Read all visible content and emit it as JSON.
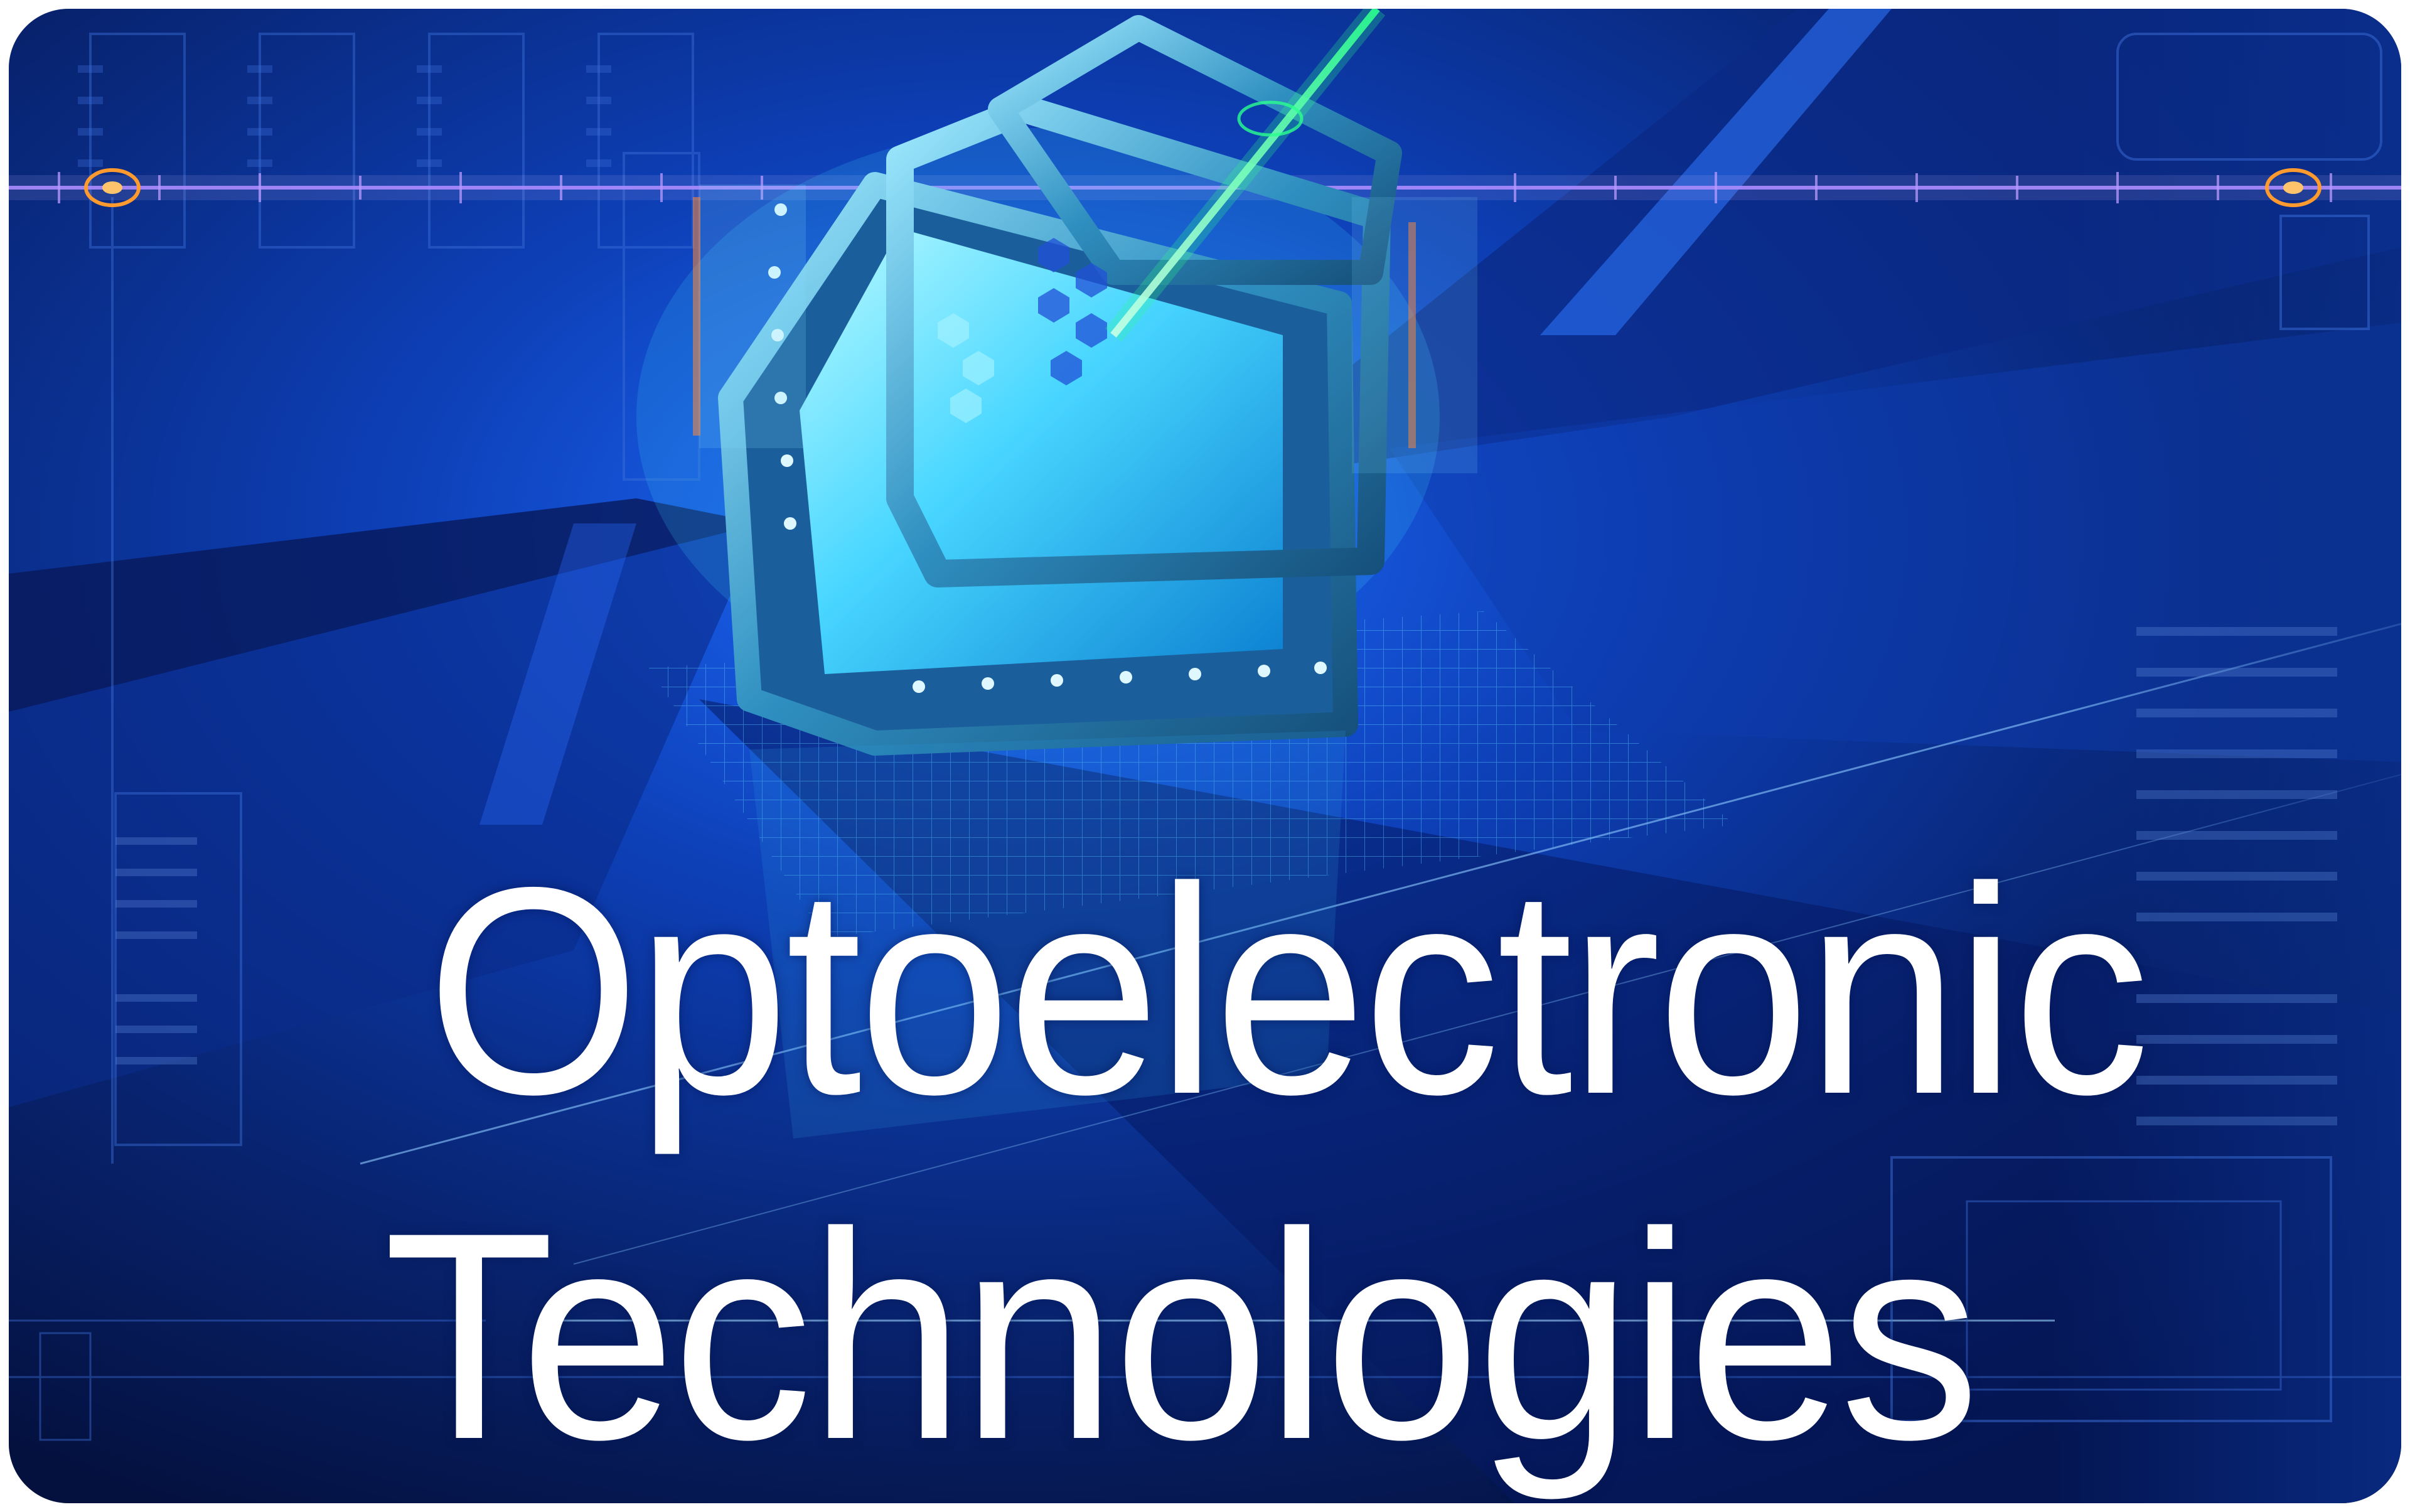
{
  "title": {
    "line1": "Optoelectronic",
    "line2": "Technologies"
  },
  "colors": {
    "background_dark": "#06164f",
    "background_mid": "#0a3aa8",
    "accent_cyan": "#5fe8ff",
    "laser_green": "#3dff9a",
    "signal_line": "#9b7dff",
    "marker_orange": "#ff9a2e",
    "text": "#ffffff"
  },
  "icons": [
    "chip-icon",
    "laser-beam",
    "target-marker-icon"
  ]
}
